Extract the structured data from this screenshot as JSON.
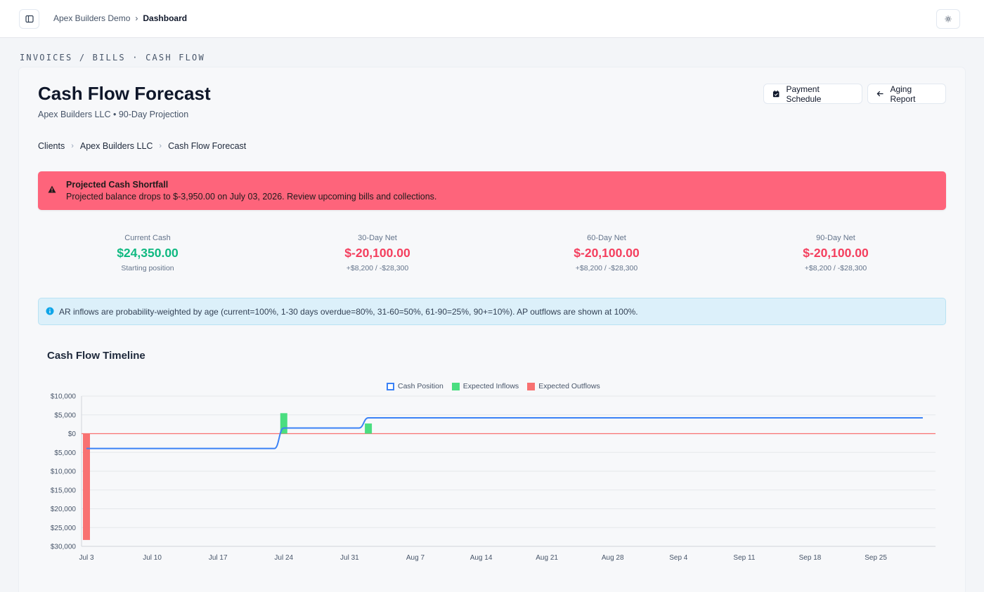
{
  "topbar": {
    "breadcrumb_root": "Apex Builders Demo",
    "breadcrumb_sep": "›",
    "breadcrumb_current": "Dashboard"
  },
  "section_label": "INVOICES / BILLS · CASH FLOW",
  "page": {
    "title": "Cash Flow Forecast",
    "subtitle": "Apex Builders LLC • 90-Day Projection",
    "actions": {
      "schedule_label": "Payment Schedule",
      "aging_label": "Aging Report"
    }
  },
  "breadcrumbs": [
    "Clients",
    "Apex Builders LLC",
    "Cash Flow Forecast"
  ],
  "alert": {
    "title": "Projected Cash Shortfall",
    "message": "Projected balance drops to $-3,950.00 on July 03, 2026. Review upcoming bills and collections."
  },
  "stats": [
    {
      "label": "Current Cash",
      "value": "$24,350.00",
      "sub": "Starting position",
      "color": "#10b981"
    },
    {
      "label": "30-Day Net",
      "value": "$-20,100.00",
      "sub": "+$8,200 / -$28,300",
      "color": "#f43f5e"
    },
    {
      "label": "60-Day Net",
      "value": "$-20,100.00",
      "sub": "+$8,200 / -$28,300",
      "color": "#f43f5e"
    },
    {
      "label": "90-Day Net",
      "value": "$-20,100.00",
      "sub": "+$8,200 / -$28,300",
      "color": "#f43f5e"
    }
  ],
  "info": {
    "text": "AR inflows are probability-weighted by age (current=100%, 1-30 days overdue=80%, 31-60=50%, 61-90=25%, 90+=10%). AP outflows are shown at 100%."
  },
  "colors": {
    "cash_line": "#3b82f6",
    "inflow": "#4ade80",
    "outflow": "#f87171",
    "zero_line": "#f87171"
  },
  "chart_data": {
    "type": "bar",
    "title": "Cash Flow Timeline",
    "legend_position": "top",
    "x_start": "Jul 3",
    "x_end": "Sep 30",
    "ylim": [
      -30000,
      10000
    ],
    "y_ticks": [
      10000,
      5000,
      0,
      -5000,
      -10000,
      -15000,
      -20000,
      -25000,
      -30000
    ],
    "y_tick_labels": [
      "$10,000",
      "$5,000",
      "$0",
      "$5,000",
      "$10,000",
      "$15,000",
      "$20,000",
      "$25,000",
      "$30,000"
    ],
    "x_tick_labels": [
      "Jul 3",
      "Jul 10",
      "Jul 17",
      "Jul 24",
      "Jul 31",
      "Aug 7",
      "Aug 14",
      "Aug 21",
      "Aug 28",
      "Sep 4",
      "Sep 11",
      "Sep 18",
      "Sep 25"
    ],
    "series": [
      {
        "name": "Cash Position",
        "kind": "line",
        "points": [
          {
            "date": "Jul 3",
            "value": -3950
          },
          {
            "date": "Jul 23",
            "value": -3950
          },
          {
            "date": "Jul 24",
            "value": 1500
          },
          {
            "date": "Aug 1",
            "value": 1500
          },
          {
            "date": "Aug 2",
            "value": 4200
          },
          {
            "date": "Sep 30",
            "value": 4200
          }
        ]
      },
      {
        "name": "Expected Inflows",
        "kind": "bar",
        "points": [
          {
            "date": "Jul 24",
            "value": 5450
          },
          {
            "date": "Aug 2",
            "value": 2700
          }
        ]
      },
      {
        "name": "Expected Outflows",
        "kind": "bar",
        "points": [
          {
            "date": "Jul 3",
            "value": -28300
          }
        ]
      }
    ]
  }
}
